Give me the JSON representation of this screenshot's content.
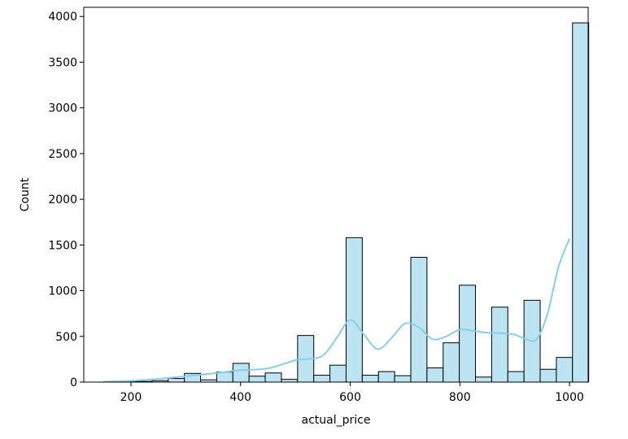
{
  "chart_data": {
    "type": "bar",
    "subtype": "histogram-with-kde",
    "title": "",
    "xlabel": "actual_price",
    "ylabel": "Count",
    "xlim": [
      114,
      1034
    ],
    "ylim": [
      0,
      4100
    ],
    "xticks": [
      200,
      400,
      600,
      800,
      1000
    ],
    "yticks": [
      0,
      500,
      1000,
      1500,
      2000,
      2500,
      3000,
      3500,
      4000
    ],
    "grid": false,
    "legend": "none",
    "bar_color": "#bde4f2",
    "bar_edge_color": "#000000",
    "kde_color": "#87ceeb",
    "bins": {
      "edges": [
        150,
        179.5,
        209,
        238.5,
        268,
        297.5,
        327,
        356.5,
        386,
        415.5,
        445,
        474.5,
        504,
        533.5,
        563,
        592.5,
        622,
        651.5,
        681,
        710.5,
        740,
        769.5,
        799,
        828.5,
        858,
        887.5,
        917,
        946.5,
        976,
        1005.5
      ],
      "counts": [
        2,
        3,
        8,
        15,
        40,
        95,
        25,
        110,
        205,
        65,
        100,
        30,
        510,
        75,
        185,
        1580,
        75,
        115,
        70,
        1365,
        155,
        430,
        1060,
        55,
        820,
        115,
        895,
        140,
        270,
        3930
      ]
    },
    "kde": {
      "x": [
        150,
        200,
        250,
        300,
        350,
        400,
        450,
        500,
        520,
        550,
        575,
        600,
        625,
        650,
        675,
        700,
        725,
        750,
        775,
        800,
        825,
        850,
        875,
        900,
        920,
        940,
        960,
        980,
        1000
      ],
      "y": [
        5,
        15,
        35,
        65,
        95,
        130,
        150,
        240,
        250,
        290,
        480,
        680,
        520,
        360,
        480,
        640,
        600,
        470,
        500,
        575,
        560,
        540,
        535,
        520,
        470,
        470,
        750,
        1260,
        1570
      ]
    }
  }
}
